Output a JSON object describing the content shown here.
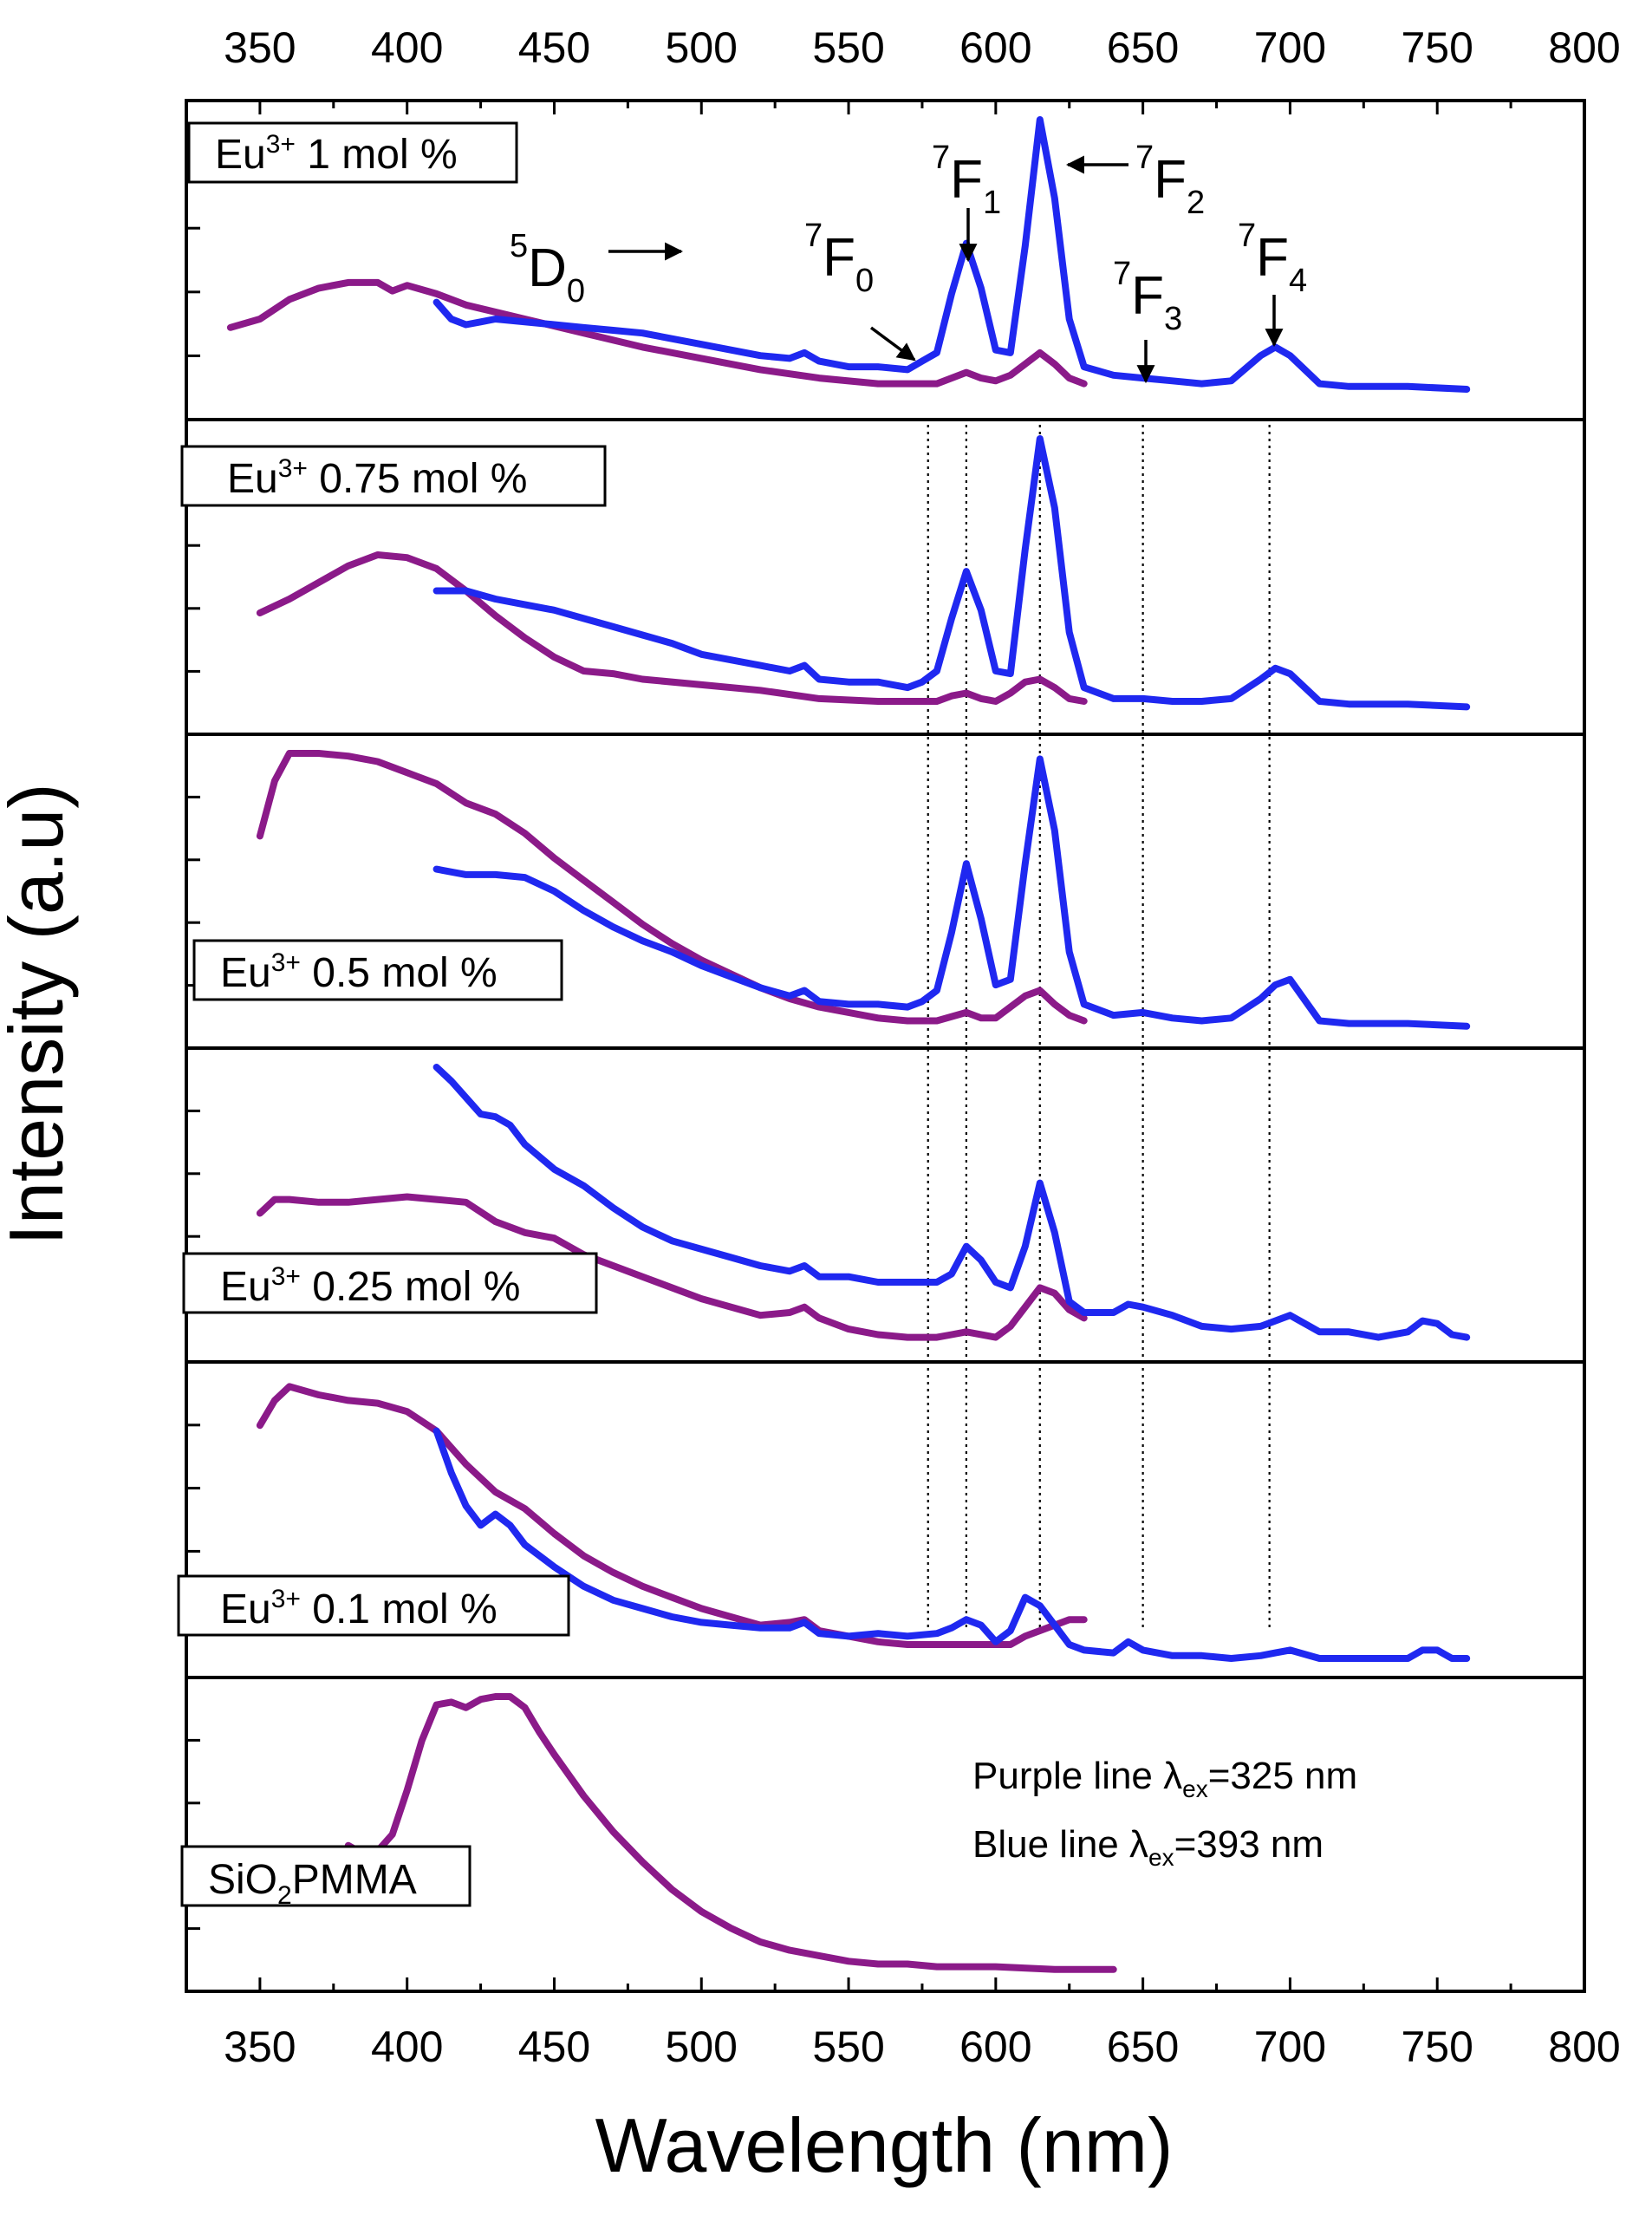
{
  "chart_data": {
    "type": "line",
    "xlabel": "Wavelength (nm)",
    "ylabel": "Intensity (a.u)",
    "xlim": [
      325,
      800
    ],
    "x_ticks": [
      "350",
      "400",
      "450",
      "500",
      "550",
      "600",
      "650",
      "700",
      "750",
      "800"
    ],
    "reference_lines_nm": [
      577,
      590,
      615,
      650,
      693
    ],
    "transition_labels": [
      {
        "id": "d0",
        "sup": "5",
        "base": "D",
        "sub": "0"
      },
      {
        "id": "f0",
        "sup": "7",
        "base": "F",
        "sub": "0"
      },
      {
        "id": "f1",
        "sup": "7",
        "base": "F",
        "sub": "1"
      },
      {
        "id": "f2",
        "sup": "7",
        "base": "F",
        "sub": "2"
      },
      {
        "id": "f3",
        "sup": "7",
        "base": "F",
        "sub": "3"
      },
      {
        "id": "f4",
        "sup": "7",
        "base": "F",
        "sub": "4"
      }
    ],
    "notes": [
      {
        "prefix": "Purple line λ",
        "sub": "ex",
        "suffix": "=325 nm"
      },
      {
        "prefix": "Blue line λ",
        "sub": "ex",
        "suffix": "=393 nm"
      }
    ],
    "colors": {
      "purple": "#8B1A89",
      "blue": "#1F28F0"
    },
    "panels": [
      {
        "label_pre": "Eu",
        "label_sup": "3+",
        "label_post": " 1 mol %",
        "series": [
          {
            "name": "Purple line λex=325 nm",
            "color": "purple",
            "x": [
              340,
              350,
              360,
              370,
              380,
              390,
              395,
              400,
              410,
              420,
              440,
              460,
              480,
              500,
              520,
              540,
              560,
              570,
              580,
              585,
              590,
              595,
              600,
              605,
              610,
              615,
              620,
              625,
              630
            ],
            "y": [
              0.26,
              0.29,
              0.36,
              0.4,
              0.42,
              0.42,
              0.39,
              0.41,
              0.38,
              0.34,
              0.29,
              0.24,
              0.19,
              0.15,
              0.11,
              0.08,
              0.06,
              0.06,
              0.06,
              0.08,
              0.1,
              0.08,
              0.07,
              0.09,
              0.13,
              0.17,
              0.13,
              0.08,
              0.06
            ]
          },
          {
            "name": "Blue line λex=393 nm",
            "color": "blue",
            "x": [
              410,
              415,
              420,
              425,
              430,
              440,
              450,
              460,
              470,
              480,
              500,
              520,
              530,
              535,
              540,
              550,
              560,
              570,
              575,
              580,
              585,
              590,
              595,
              600,
              605,
              610,
              615,
              620,
              625,
              630,
              640,
              650,
              660,
              670,
              680,
              690,
              695,
              700,
              710,
              720,
              740,
              760
            ],
            "y": [
              0.35,
              0.29,
              0.27,
              0.28,
              0.29,
              0.28,
              0.27,
              0.26,
              0.25,
              0.24,
              0.2,
              0.16,
              0.15,
              0.17,
              0.14,
              0.12,
              0.12,
              0.11,
              0.14,
              0.17,
              0.38,
              0.56,
              0.4,
              0.18,
              0.17,
              0.55,
              1.0,
              0.72,
              0.29,
              0.12,
              0.09,
              0.08,
              0.07,
              0.06,
              0.07,
              0.16,
              0.19,
              0.16,
              0.06,
              0.05,
              0.05,
              0.04
            ]
          }
        ]
      },
      {
        "label_pre": "Eu",
        "label_sup": "3+",
        "label_post": " 0.75 mol %",
        "series": [
          {
            "name": "Purple line λex=325 nm",
            "color": "purple",
            "x": [
              350,
              360,
              370,
              380,
              390,
              400,
              410,
              420,
              430,
              440,
              450,
              460,
              470,
              480,
              500,
              520,
              540,
              560,
              580,
              585,
              590,
              595,
              600,
              605,
              610,
              615,
              620,
              625,
              630
            ],
            "y": [
              0.37,
              0.42,
              0.48,
              0.54,
              0.58,
              0.57,
              0.53,
              0.45,
              0.36,
              0.28,
              0.21,
              0.16,
              0.15,
              0.13,
              0.11,
              0.09,
              0.06,
              0.05,
              0.05,
              0.07,
              0.08,
              0.06,
              0.05,
              0.08,
              0.12,
              0.13,
              0.1,
              0.06,
              0.05
            ]
          },
          {
            "name": "Blue line λex=393 nm",
            "color": "blue",
            "x": [
              410,
              420,
              430,
              440,
              450,
              460,
              470,
              480,
              490,
              500,
              520,
              530,
              535,
              540,
              550,
              560,
              570,
              575,
              580,
              585,
              590,
              595,
              600,
              605,
              610,
              615,
              620,
              625,
              630,
              640,
              650,
              660,
              670,
              680,
              690,
              695,
              700,
              710,
              720,
              740,
              760
            ],
            "y": [
              0.45,
              0.45,
              0.42,
              0.4,
              0.38,
              0.35,
              0.32,
              0.29,
              0.26,
              0.22,
              0.18,
              0.16,
              0.18,
              0.13,
              0.12,
              0.12,
              0.1,
              0.12,
              0.16,
              0.35,
              0.52,
              0.38,
              0.16,
              0.15,
              0.6,
              1.0,
              0.75,
              0.3,
              0.1,
              0.06,
              0.06,
              0.05,
              0.05,
              0.06,
              0.13,
              0.17,
              0.15,
              0.05,
              0.04,
              0.04,
              0.03
            ]
          }
        ]
      },
      {
        "label_pre": "Eu",
        "label_sup": "3+",
        "label_post": " 0.5 mol %",
        "series": [
          {
            "name": "Purple line λex=325 nm",
            "color": "purple",
            "x": [
              350,
              355,
              360,
              370,
              380,
              390,
              400,
              410,
              420,
              430,
              440,
              450,
              460,
              470,
              480,
              490,
              500,
              510,
              520,
              530,
              540,
              550,
              560,
              570,
              580,
              590,
              595,
              600,
              605,
              610,
              615,
              620,
              625,
              630
            ],
            "y": [
              0.7,
              0.9,
              1.0,
              1.0,
              0.99,
              0.97,
              0.93,
              0.89,
              0.82,
              0.78,
              0.71,
              0.62,
              0.54,
              0.46,
              0.38,
              0.31,
              0.25,
              0.2,
              0.15,
              0.11,
              0.08,
              0.06,
              0.04,
              0.03,
              0.03,
              0.06,
              0.04,
              0.04,
              0.08,
              0.12,
              0.14,
              0.09,
              0.05,
              0.03
            ]
          },
          {
            "name": "Blue line λex=393 nm",
            "color": "blue",
            "x": [
              410,
              420,
              430,
              440,
              450,
              460,
              470,
              480,
              490,
              500,
              510,
              520,
              530,
              535,
              540,
              550,
              560,
              570,
              575,
              580,
              585,
              590,
              595,
              600,
              605,
              610,
              615,
              620,
              625,
              630,
              640,
              650,
              660,
              670,
              680,
              690,
              695,
              700,
              710,
              720,
              740,
              760
            ],
            "y": [
              0.58,
              0.56,
              0.56,
              0.55,
              0.5,
              0.43,
              0.37,
              0.32,
              0.28,
              0.23,
              0.19,
              0.15,
              0.12,
              0.14,
              0.1,
              0.09,
              0.09,
              0.08,
              0.1,
              0.14,
              0.35,
              0.6,
              0.4,
              0.16,
              0.18,
              0.6,
              0.98,
              0.72,
              0.28,
              0.09,
              0.05,
              0.06,
              0.04,
              0.03,
              0.04,
              0.11,
              0.16,
              0.18,
              0.03,
              0.02,
              0.02,
              0.01
            ]
          }
        ]
      },
      {
        "label_pre": "Eu",
        "label_sup": "3+",
        "label_post": " 0.25 mol %",
        "series": [
          {
            "name": "Purple line λex=325 nm",
            "color": "purple",
            "x": [
              350,
              355,
              360,
              370,
              380,
              390,
              400,
              410,
              420,
              430,
              440,
              450,
              460,
              480,
              500,
              520,
              530,
              535,
              540,
              550,
              560,
              570,
              580,
              585,
              590,
              600,
              605,
              610,
              615,
              620,
              625,
              630
            ],
            "y": [
              0.47,
              0.52,
              0.52,
              0.51,
              0.51,
              0.52,
              0.53,
              0.52,
              0.51,
              0.44,
              0.4,
              0.38,
              0.32,
              0.24,
              0.16,
              0.1,
              0.11,
              0.13,
              0.09,
              0.05,
              0.03,
              0.02,
              0.02,
              0.03,
              0.04,
              0.02,
              0.06,
              0.13,
              0.2,
              0.18,
              0.12,
              0.09
            ]
          },
          {
            "name": "Blue line λex=393 nm",
            "color": "blue",
            "x": [
              410,
              415,
              420,
              425,
              430,
              435,
              440,
              450,
              460,
              470,
              480,
              490,
              500,
              510,
              520,
              530,
              535,
              540,
              550,
              560,
              570,
              580,
              585,
              590,
              595,
              600,
              605,
              610,
              615,
              620,
              625,
              630,
              640,
              645,
              650,
              660,
              670,
              680,
              690,
              695,
              700,
              710,
              720,
              730,
              740,
              745,
              750,
              755,
              760
            ],
            "y": [
              1.0,
              0.95,
              0.89,
              0.83,
              0.82,
              0.79,
              0.72,
              0.63,
              0.57,
              0.49,
              0.42,
              0.37,
              0.34,
              0.31,
              0.28,
              0.26,
              0.28,
              0.24,
              0.24,
              0.22,
              0.22,
              0.22,
              0.25,
              0.35,
              0.3,
              0.22,
              0.2,
              0.35,
              0.58,
              0.4,
              0.15,
              0.11,
              0.11,
              0.14,
              0.13,
              0.1,
              0.06,
              0.05,
              0.06,
              0.08,
              0.1,
              0.04,
              0.04,
              0.02,
              0.04,
              0.08,
              0.07,
              0.03,
              0.02
            ]
          }
        ]
      },
      {
        "label_pre": "Eu",
        "label_sup": "3+",
        "label_post": " 0.1 mol %",
        "series": [
          {
            "name": "Purple line λex=325 nm",
            "color": "purple",
            "x": [
              350,
              355,
              360,
              370,
              380,
              390,
              400,
              410,
              420,
              430,
              440,
              450,
              460,
              470,
              480,
              490,
              500,
              510,
              520,
              530,
              535,
              540,
              550,
              560,
              570,
              580,
              590,
              600,
              605,
              610,
              615,
              620,
              625,
              630
            ],
            "y": [
              0.84,
              0.93,
              0.98,
              0.95,
              0.93,
              0.92,
              0.89,
              0.82,
              0.7,
              0.6,
              0.54,
              0.45,
              0.37,
              0.31,
              0.26,
              0.22,
              0.18,
              0.15,
              0.12,
              0.13,
              0.14,
              0.1,
              0.08,
              0.06,
              0.05,
              0.05,
              0.05,
              0.05,
              0.05,
              0.08,
              0.1,
              0.12,
              0.14,
              0.14
            ]
          },
          {
            "name": "Blue line λex=393 nm",
            "color": "blue",
            "x": [
              410,
              415,
              420,
              425,
              430,
              435,
              440,
              450,
              460,
              470,
              480,
              490,
              500,
              510,
              520,
              530,
              535,
              540,
              550,
              560,
              570,
              580,
              585,
              590,
              595,
              600,
              605,
              610,
              615,
              620,
              625,
              630,
              640,
              645,
              650,
              660,
              670,
              680,
              690,
              695,
              700,
              710,
              720,
              740,
              745,
              750,
              755,
              760
            ],
            "y": [
              0.82,
              0.67,
              0.55,
              0.48,
              0.52,
              0.48,
              0.41,
              0.33,
              0.26,
              0.21,
              0.18,
              0.15,
              0.13,
              0.12,
              0.11,
              0.11,
              0.13,
              0.09,
              0.08,
              0.09,
              0.08,
              0.09,
              0.11,
              0.14,
              0.12,
              0.06,
              0.1,
              0.22,
              0.19,
              0.12,
              0.05,
              0.03,
              0.02,
              0.06,
              0.03,
              0.01,
              0.01,
              0.0,
              0.01,
              0.02,
              0.03,
              0.0,
              0.0,
              0.0,
              0.03,
              0.03,
              0.0,
              0.0
            ]
          }
        ]
      },
      {
        "label_pre": "SiO",
        "label_sub": "2",
        "label_post": "PMMA",
        "series": [
          {
            "name": "Purple line λex=325 nm",
            "color": "purple",
            "x": [
              380,
              385,
              390,
              395,
              400,
              405,
              410,
              415,
              420,
              425,
              430,
              435,
              440,
              445,
              450,
              460,
              470,
              480,
              490,
              500,
              510,
              520,
              530,
              540,
              550,
              560,
              570,
              580,
              600,
              620,
              640
            ],
            "y": [
              0.46,
              0.43,
              0.44,
              0.5,
              0.66,
              0.84,
              0.97,
              0.98,
              0.96,
              0.99,
              1.0,
              1.0,
              0.96,
              0.87,
              0.79,
              0.64,
              0.51,
              0.4,
              0.3,
              0.22,
              0.16,
              0.11,
              0.08,
              0.06,
              0.04,
              0.03,
              0.03,
              0.02,
              0.02,
              0.01,
              0.01
            ]
          }
        ]
      }
    ]
  }
}
